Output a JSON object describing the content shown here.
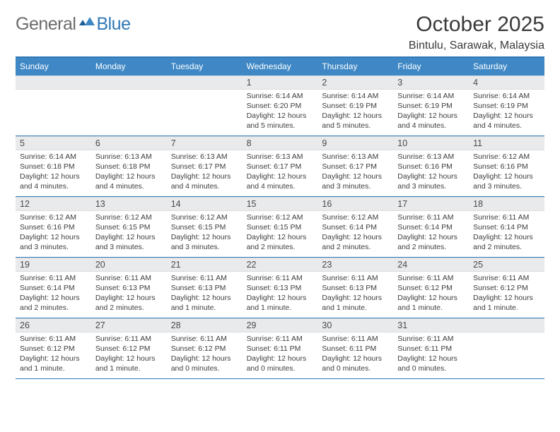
{
  "brand": {
    "a": "General",
    "b": "Blue"
  },
  "title": "October 2025",
  "location": "Bintulu, Sarawak, Malaysia",
  "header_bg": "#3f88c5",
  "rule_color": "#2f78b8",
  "day_bar_bg": "#e9eaec",
  "dow": [
    "Sunday",
    "Monday",
    "Tuesday",
    "Wednesday",
    "Thursday",
    "Friday",
    "Saturday"
  ],
  "weeks": [
    [
      null,
      null,
      null,
      {
        "d": "1",
        "sr": "6:14 AM",
        "ss": "6:20 PM",
        "dl": "12 hours and 5 minutes."
      },
      {
        "d": "2",
        "sr": "6:14 AM",
        "ss": "6:19 PM",
        "dl": "12 hours and 5 minutes."
      },
      {
        "d": "3",
        "sr": "6:14 AM",
        "ss": "6:19 PM",
        "dl": "12 hours and 4 minutes."
      },
      {
        "d": "4",
        "sr": "6:14 AM",
        "ss": "6:19 PM",
        "dl": "12 hours and 4 minutes."
      }
    ],
    [
      {
        "d": "5",
        "sr": "6:14 AM",
        "ss": "6:18 PM",
        "dl": "12 hours and 4 minutes."
      },
      {
        "d": "6",
        "sr": "6:13 AM",
        "ss": "6:18 PM",
        "dl": "12 hours and 4 minutes."
      },
      {
        "d": "7",
        "sr": "6:13 AM",
        "ss": "6:17 PM",
        "dl": "12 hours and 4 minutes."
      },
      {
        "d": "8",
        "sr": "6:13 AM",
        "ss": "6:17 PM",
        "dl": "12 hours and 4 minutes."
      },
      {
        "d": "9",
        "sr": "6:13 AM",
        "ss": "6:17 PM",
        "dl": "12 hours and 3 minutes."
      },
      {
        "d": "10",
        "sr": "6:13 AM",
        "ss": "6:16 PM",
        "dl": "12 hours and 3 minutes."
      },
      {
        "d": "11",
        "sr": "6:12 AM",
        "ss": "6:16 PM",
        "dl": "12 hours and 3 minutes."
      }
    ],
    [
      {
        "d": "12",
        "sr": "6:12 AM",
        "ss": "6:16 PM",
        "dl": "12 hours and 3 minutes."
      },
      {
        "d": "13",
        "sr": "6:12 AM",
        "ss": "6:15 PM",
        "dl": "12 hours and 3 minutes."
      },
      {
        "d": "14",
        "sr": "6:12 AM",
        "ss": "6:15 PM",
        "dl": "12 hours and 3 minutes."
      },
      {
        "d": "15",
        "sr": "6:12 AM",
        "ss": "6:15 PM",
        "dl": "12 hours and 2 minutes."
      },
      {
        "d": "16",
        "sr": "6:12 AM",
        "ss": "6:14 PM",
        "dl": "12 hours and 2 minutes."
      },
      {
        "d": "17",
        "sr": "6:11 AM",
        "ss": "6:14 PM",
        "dl": "12 hours and 2 minutes."
      },
      {
        "d": "18",
        "sr": "6:11 AM",
        "ss": "6:14 PM",
        "dl": "12 hours and 2 minutes."
      }
    ],
    [
      {
        "d": "19",
        "sr": "6:11 AM",
        "ss": "6:14 PM",
        "dl": "12 hours and 2 minutes."
      },
      {
        "d": "20",
        "sr": "6:11 AM",
        "ss": "6:13 PM",
        "dl": "12 hours and 2 minutes."
      },
      {
        "d": "21",
        "sr": "6:11 AM",
        "ss": "6:13 PM",
        "dl": "12 hours and 1 minute."
      },
      {
        "d": "22",
        "sr": "6:11 AM",
        "ss": "6:13 PM",
        "dl": "12 hours and 1 minute."
      },
      {
        "d": "23",
        "sr": "6:11 AM",
        "ss": "6:13 PM",
        "dl": "12 hours and 1 minute."
      },
      {
        "d": "24",
        "sr": "6:11 AM",
        "ss": "6:12 PM",
        "dl": "12 hours and 1 minute."
      },
      {
        "d": "25",
        "sr": "6:11 AM",
        "ss": "6:12 PM",
        "dl": "12 hours and 1 minute."
      }
    ],
    [
      {
        "d": "26",
        "sr": "6:11 AM",
        "ss": "6:12 PM",
        "dl": "12 hours and 1 minute."
      },
      {
        "d": "27",
        "sr": "6:11 AM",
        "ss": "6:12 PM",
        "dl": "12 hours and 1 minute."
      },
      {
        "d": "28",
        "sr": "6:11 AM",
        "ss": "6:12 PM",
        "dl": "12 hours and 0 minutes."
      },
      {
        "d": "29",
        "sr": "6:11 AM",
        "ss": "6:11 PM",
        "dl": "12 hours and 0 minutes."
      },
      {
        "d": "30",
        "sr": "6:11 AM",
        "ss": "6:11 PM",
        "dl": "12 hours and 0 minutes."
      },
      {
        "d": "31",
        "sr": "6:11 AM",
        "ss": "6:11 PM",
        "dl": "12 hours and 0 minutes."
      },
      null
    ]
  ],
  "labels": {
    "sunrise": "Sunrise: ",
    "sunset": "Sunset: ",
    "daylight": "Daylight: "
  }
}
